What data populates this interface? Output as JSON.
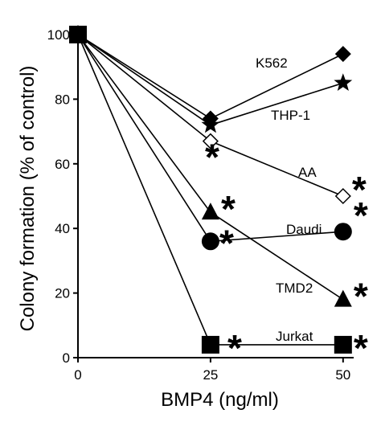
{
  "chart_data": {
    "type": "line",
    "title": "",
    "xlabel": "BMP4 (ng/ml)",
    "ylabel": "Colony formation (% of control)",
    "xlim": [
      0,
      52
    ],
    "ylim": [
      0,
      100
    ],
    "xticks": [
      0,
      25,
      50
    ],
    "yticks": [
      0,
      20,
      40,
      60,
      80,
      100
    ],
    "grid": false,
    "legend": "inline labels",
    "significance_marker": "*",
    "series": [
      {
        "name": "K562",
        "marker": "diamond-filled",
        "x": [
          0,
          25,
          50
        ],
        "y": [
          100,
          74,
          94
        ],
        "significant": [
          false,
          false,
          false
        ]
      },
      {
        "name": "THP-1",
        "marker": "star-filled",
        "x": [
          0,
          25,
          50
        ],
        "y": [
          100,
          72,
          85
        ],
        "significant": [
          false,
          false,
          false
        ]
      },
      {
        "name": "AA",
        "marker": "diamond-open",
        "x": [
          0,
          25,
          50
        ],
        "y": [
          100,
          67,
          50
        ],
        "significant": [
          false,
          true,
          true
        ]
      },
      {
        "name": "Daudi",
        "marker": "circle-filled",
        "x": [
          0,
          25,
          50
        ],
        "y": [
          100,
          36,
          39
        ],
        "significant": [
          false,
          true,
          true
        ]
      },
      {
        "name": "TMD2",
        "marker": "triangle-filled",
        "x": [
          0,
          25,
          50
        ],
        "y": [
          100,
          45,
          18
        ],
        "significant": [
          false,
          true,
          true
        ]
      },
      {
        "name": "Jurkat",
        "marker": "square-filled",
        "x": [
          0,
          25,
          50
        ],
        "y": [
          100,
          4,
          4
        ],
        "significant": [
          false,
          true,
          true
        ]
      }
    ]
  }
}
